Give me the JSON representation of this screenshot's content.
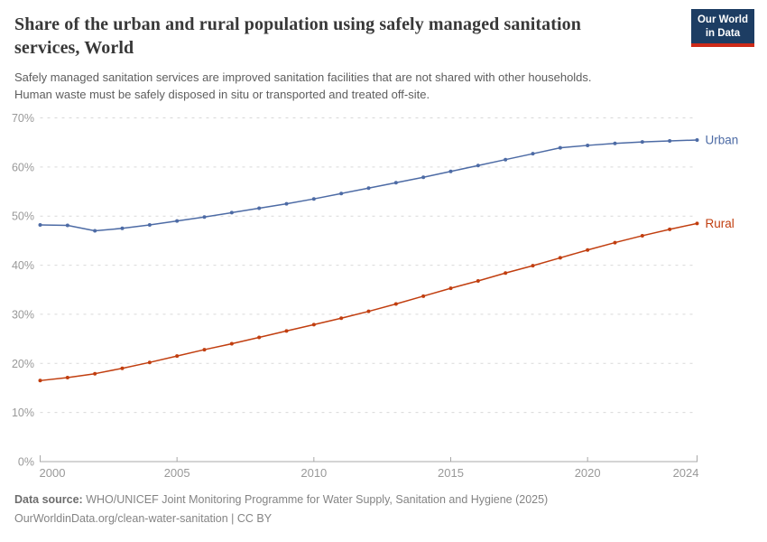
{
  "header": {
    "title": "Share of the urban and rural population using safely managed sanitation services, World",
    "title_lines": [
      "Share of the urban and rural population using safely managed sanitation",
      "services, World"
    ],
    "subtitle_lines": [
      "Safely managed sanitation services are improved sanitation facilities that are not shared with other households.",
      "Human waste must be safely disposed in situ or transported and treated off-site."
    ]
  },
  "logo": {
    "line1": "Our World",
    "line2": "in Data"
  },
  "chart_data": {
    "type": "line",
    "title": "Share of the urban and rural population using safely managed sanitation services, World",
    "x": [
      2000,
      2001,
      2002,
      2003,
      2004,
      2005,
      2006,
      2007,
      2008,
      2009,
      2010,
      2011,
      2012,
      2013,
      2014,
      2015,
      2016,
      2017,
      2018,
      2019,
      2020,
      2021,
      2022,
      2023,
      2024
    ],
    "series": [
      {
        "name": "Urban",
        "color": "#4d6ba5",
        "values": [
          48.2,
          48.1,
          47.0,
          47.5,
          48.2,
          49.0,
          49.8,
          50.7,
          51.6,
          52.5,
          53.5,
          54.6,
          55.7,
          56.8,
          57.9,
          59.1,
          60.3,
          61.5,
          62.7,
          63.9,
          64.4,
          64.8,
          65.1,
          65.3,
          65.5
        ]
      },
      {
        "name": "Rural",
        "color": "#c13e0f",
        "values": [
          16.5,
          17.1,
          17.9,
          19.0,
          20.2,
          21.5,
          22.8,
          24.0,
          25.3,
          26.6,
          27.9,
          29.2,
          30.6,
          32.1,
          33.7,
          35.3,
          36.8,
          38.4,
          39.9,
          41.5,
          43.1,
          44.6,
          46.0,
          47.3,
          48.5
        ]
      }
    ],
    "xlabel": "",
    "ylabel": "",
    "ylim": [
      0,
      70
    ],
    "yticks": [
      0,
      10,
      20,
      30,
      40,
      50,
      60,
      70
    ],
    "ytick_labels": [
      "0%",
      "10%",
      "20%",
      "30%",
      "40%",
      "50%",
      "60%",
      "70%"
    ],
    "xticks": [
      2000,
      2005,
      2010,
      2015,
      2020,
      2024
    ],
    "xtick_labels": [
      "2000",
      "2005",
      "2010",
      "2015",
      "2020",
      "2024"
    ],
    "grid": "horizontal-dashed",
    "legend_position": "line-end-labels",
    "colors": {
      "grid": "#d9d9d9",
      "axis": "#a8a8a8",
      "tick_text": "#999999"
    }
  },
  "footer": {
    "source_label": "Data source:",
    "source_text": " WHO/UNICEF Joint Monitoring Programme for Water Supply, Sanitation and Hygiene (2025)",
    "link": "OurWorldinData.org/clean-water-sanitation",
    "license_sep": " | ",
    "license": "CC BY"
  }
}
